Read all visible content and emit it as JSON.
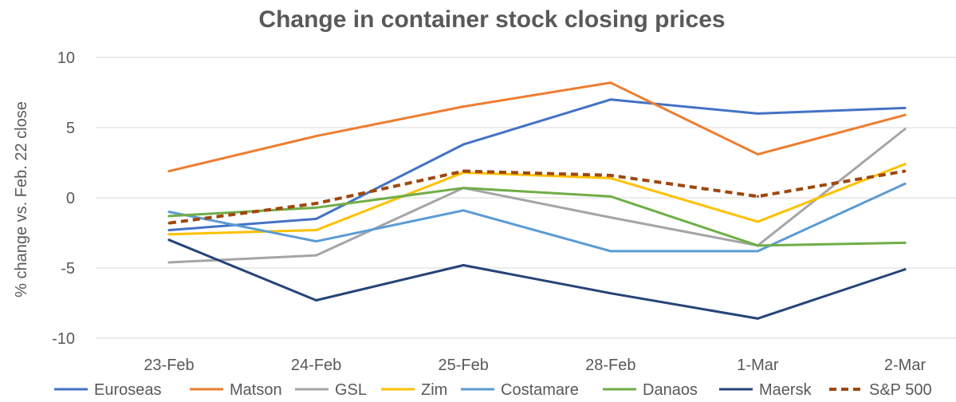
{
  "chart_data": {
    "type": "line",
    "title": "Change in container stock closing prices",
    "xlabel": "",
    "ylabel": "% change vs. Feb. 22 close",
    "ylim": [
      -10,
      10
    ],
    "yticks": [
      10,
      5,
      0,
      -5,
      -10
    ],
    "grid": true,
    "legend_position": "bottom",
    "categories": [
      "23-Feb",
      "24-Feb",
      "25-Feb",
      "28-Feb",
      "1-Mar",
      "2-Mar"
    ],
    "series": [
      {
        "name": "Euroseas",
        "color": "#4472C4",
        "dashed": false,
        "values": [
          -2.3,
          -1.5,
          3.8,
          7.0,
          6.0,
          6.4
        ]
      },
      {
        "name": "Matson",
        "color": "#ED7D31",
        "dashed": false,
        "values": [
          1.9,
          4.4,
          6.5,
          8.2,
          3.1,
          5.9
        ]
      },
      {
        "name": "GSL",
        "color": "#A5A5A5",
        "dashed": false,
        "values": [
          -4.6,
          -4.1,
          0.7,
          -1.4,
          -3.4,
          4.9
        ]
      },
      {
        "name": "Zim",
        "color": "#FFC000",
        "dashed": false,
        "values": [
          -2.6,
          -2.3,
          1.8,
          1.4,
          -1.7,
          2.4
        ]
      },
      {
        "name": "Costamare",
        "color": "#5B9BD5",
        "dashed": false,
        "values": [
          -1.0,
          -3.1,
          -0.9,
          -3.8,
          -3.8,
          1.0
        ]
      },
      {
        "name": "Danaos",
        "color": "#70AD47",
        "dashed": false,
        "values": [
          -1.3,
          -0.7,
          0.7,
          0.1,
          -3.4,
          -3.2
        ]
      },
      {
        "name": "Maersk",
        "color": "#264478",
        "dashed": false,
        "values": [
          -3.0,
          -7.3,
          -4.8,
          -6.8,
          -8.6,
          -5.1
        ]
      },
      {
        "name": "S&P 500",
        "color": "#9E480E",
        "dashed": true,
        "values": [
          -1.8,
          -0.4,
          1.9,
          1.6,
          0.1,
          1.9
        ]
      }
    ]
  }
}
